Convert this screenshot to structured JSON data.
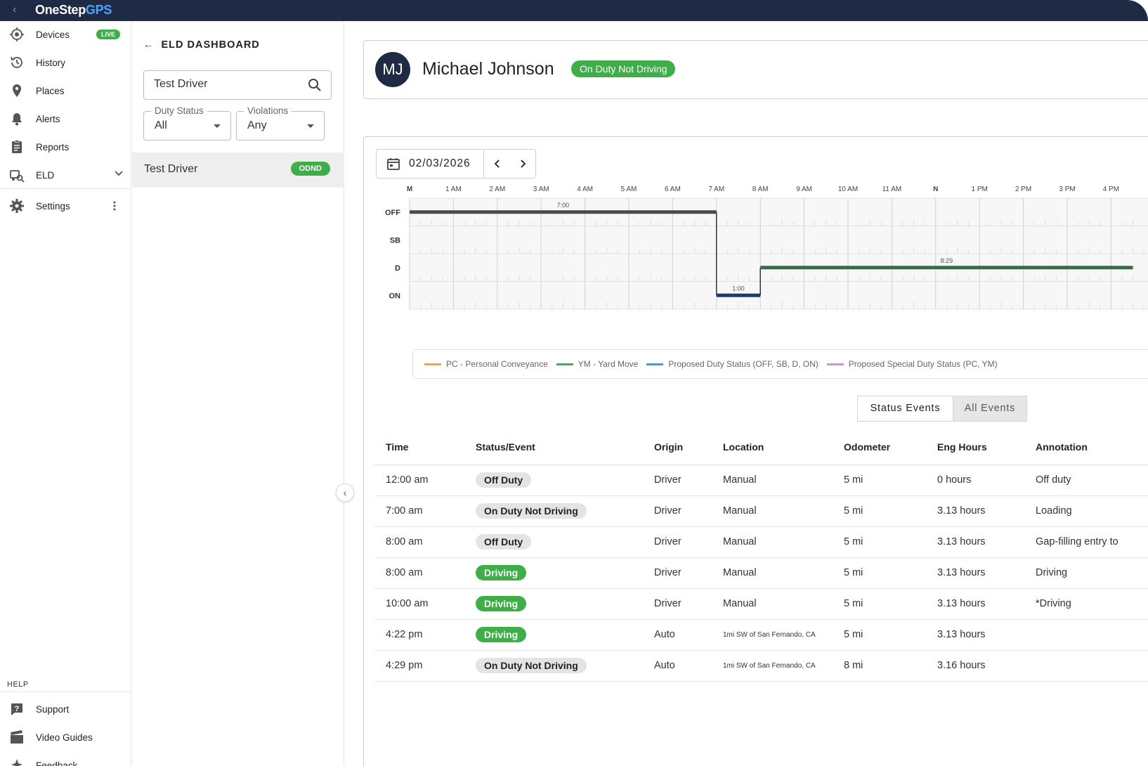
{
  "app": {
    "brand_main": "OneStep",
    "brand_accent": "GPS",
    "back_glyph": "‹"
  },
  "nav": {
    "items": [
      {
        "label": "Devices",
        "icon": "devices-icon",
        "badge": "LIVE"
      },
      {
        "label": "History",
        "icon": "history-icon"
      },
      {
        "label": "Places",
        "icon": "places-pin-icon"
      },
      {
        "label": "Alerts",
        "icon": "alerts-bell-icon"
      },
      {
        "label": "Reports",
        "icon": "reports-clipboard-icon"
      },
      {
        "label": "ELD",
        "icon": "eld-truck-icon"
      },
      {
        "label": "Settings",
        "icon": "settings-gear-icon"
      }
    ],
    "help_label": "HELP",
    "help_items": [
      {
        "label": "Support",
        "icon": "support-icon"
      },
      {
        "label": "Video Guides",
        "icon": "video-guides-icon"
      },
      {
        "label": "Feedback",
        "icon": "feedback-icon"
      }
    ]
  },
  "panel": {
    "title": "ELD DASHBOARD",
    "search_value": "Test Driver",
    "duty_status": {
      "label": "Duty Status",
      "value": "All"
    },
    "violations": {
      "label": "Violations",
      "value": "Any"
    },
    "drivers": [
      {
        "name": "Test Driver",
        "badge": "ODND"
      }
    ]
  },
  "driver": {
    "initials": "MJ",
    "name": "Michael Johnson",
    "status": "On Duty Not Driving"
  },
  "log": {
    "date": "02/03/2026",
    "hour_labels": [
      "M",
      "1 AM",
      "2 AM",
      "3 AM",
      "4 AM",
      "5 AM",
      "6 AM",
      "7 AM",
      "8 AM",
      "9 AM",
      "10 AM",
      "11 AM",
      "N",
      "1 PM",
      "2 PM",
      "3 PM",
      "4 PM"
    ],
    "row_labels": [
      "OFF",
      "SB",
      "D",
      "ON"
    ],
    "segments": [
      {
        "status": "OFF",
        "start_hour": 0,
        "end_hour": 7,
        "duration_label": "7:00"
      },
      {
        "status": "ON",
        "start_hour": 7,
        "end_hour": 8,
        "duration_label": "1:00"
      },
      {
        "status": "D",
        "start_hour": 8,
        "end_hour": 16.5,
        "duration_label": "8:29"
      }
    ],
    "colors": {
      "off": "#4a4a4a",
      "on": "#1f3a6e",
      "driving": "#3e6b47"
    },
    "legend": [
      {
        "label": "PC - Personal Conveyance",
        "color": "#f5a623"
      },
      {
        "label": "YM - Yard Move",
        "color": "#3fae48"
      },
      {
        "label": "Proposed Duty Status (OFF, SB, D, ON)",
        "color": "#29a8e0"
      },
      {
        "label": "Proposed Special Duty Status (PC, YM)",
        "color": "#d08fd8"
      }
    ],
    "toggle": {
      "status_events": "Status Events",
      "all_events": "All Events"
    }
  },
  "table": {
    "headers": [
      "Time",
      "Status/Event",
      "Origin",
      "Location",
      "Odometer",
      "Eng Hours",
      "Annotation"
    ],
    "rows": [
      {
        "time": "12:00 am",
        "status": "Off Duty",
        "status_color": "gray",
        "origin": "Driver",
        "location": "Manual",
        "odometer": "5 mi",
        "eng_hours": "0 hours",
        "annotation": "Off duty"
      },
      {
        "time": "7:00 am",
        "status": "On Duty Not Driving",
        "status_color": "gray",
        "origin": "Driver",
        "location": "Manual",
        "odometer": "5 mi",
        "eng_hours": "3.13 hours",
        "annotation": "Loading"
      },
      {
        "time": "8:00 am",
        "status": "Off Duty",
        "status_color": "gray",
        "origin": "Driver",
        "location": "Manual",
        "odometer": "5 mi",
        "eng_hours": "3.13 hours",
        "annotation": "Gap-filling entry to"
      },
      {
        "time": "8:00 am",
        "status": "Driving",
        "status_color": "green",
        "origin": "Driver",
        "location": "Manual",
        "odometer": "5 mi",
        "eng_hours": "3.13 hours",
        "annotation": "Driving"
      },
      {
        "time": "10:00 am",
        "status": "Driving",
        "status_color": "green",
        "origin": "Driver",
        "location": "Manual",
        "odometer": "5 mi",
        "eng_hours": "3.13 hours",
        "annotation": "*Driving"
      },
      {
        "time": "4:22 pm",
        "status": "Driving",
        "status_color": "green",
        "origin": "Auto",
        "location": "1mi SW of San Fernando, CA",
        "odometer": "5 mi",
        "eng_hours": "3.13 hours",
        "annotation": ""
      },
      {
        "time": "4:29 pm",
        "status": "On Duty Not Driving",
        "status_color": "gray",
        "origin": "Auto",
        "location": "1mi SW of San Fernando, CA",
        "odometer": "8 mi",
        "eng_hours": "3.16 hours",
        "annotation": ""
      }
    ]
  }
}
